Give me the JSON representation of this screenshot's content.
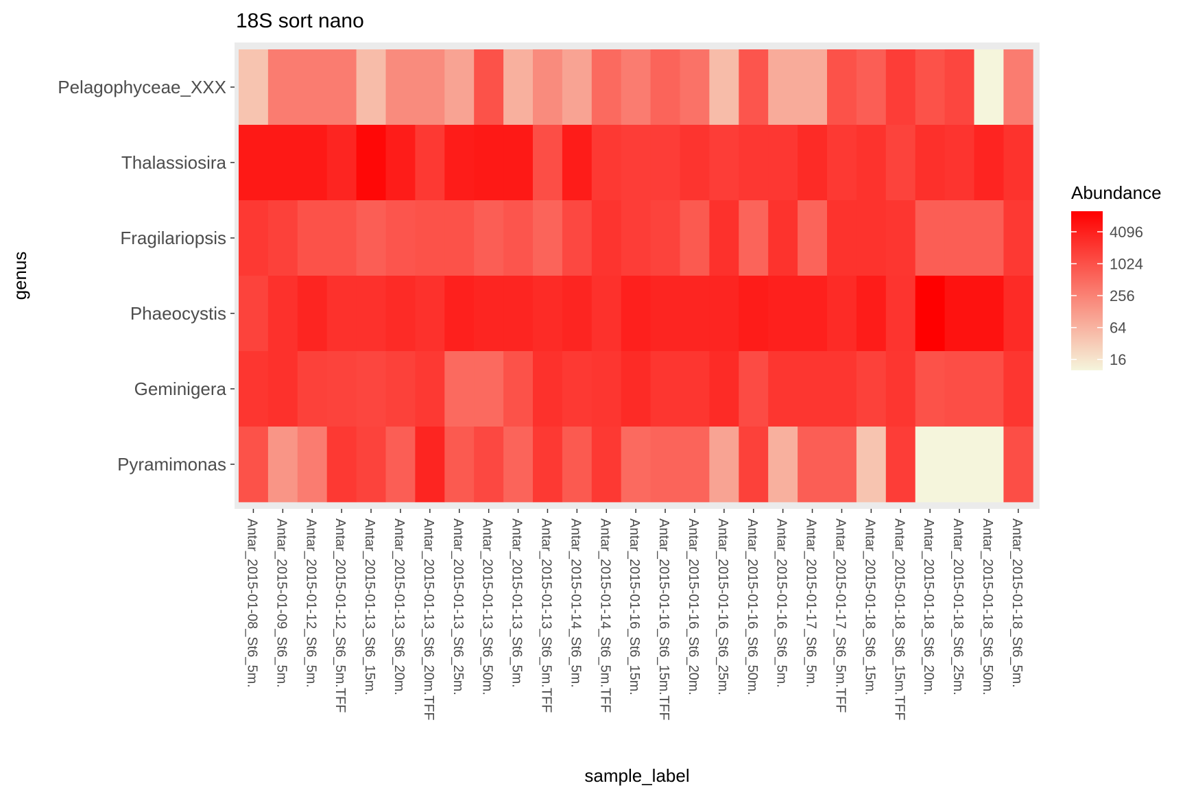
{
  "chart_data": {
    "type": "heatmap",
    "title": "18S sort nano",
    "xlabel": "sample_label",
    "ylabel": "genus",
    "x_categories": [
      "Antar_2015-01-08_St6_5m.",
      "Antar_2015-01-09_St6_5m.",
      "Antar_2015-01-12_St6_5m.",
      "Antar_2015-01-12_St6_5m.TFF",
      "Antar_2015-01-13_St6_15m.",
      "Antar_2015-01-13_St6_20m.",
      "Antar_2015-01-13_St6_20m.TFF",
      "Antar_2015-01-13_St6_25m.",
      "Antar_2015-01-13_St6_50m.",
      "Antar_2015-01-13_St6_5m.",
      "Antar_2015-01-13_St6_5m.TFF",
      "Antar_2015-01-14_St6_5m.",
      "Antar_2015-01-14_St6_5m.TFF",
      "Antar_2015-01-16_St6_15m.",
      "Antar_2015-01-16_St6_15m.TFF",
      "Antar_2015-01-16_St6_20m.",
      "Antar_2015-01-16_St6_25m.",
      "Antar_2015-01-16_St6_50m.",
      "Antar_2015-01-16_St6_5m.",
      "Antar_2015-01-17_St6_5m.",
      "Antar_2015-01-17_St6_5m.TFF",
      "Antar_2015-01-18_St6_15m.",
      "Antar_2015-01-18_St6_15m.TFF",
      "Antar_2015-01-18_St6_20m.",
      "Antar_2015-01-18_St6_25m.",
      "Antar_2015-01-18_St6_50m.",
      "Antar_2015-01-18_St6_5m."
    ],
    "y_categories": [
      "Pelagophyceae_XXX",
      "Thalassiosira",
      "Fragilariopsis",
      "Phaeocystis",
      "Geminigera",
      "Pyramimonas"
    ],
    "values": [
      [
        40,
        300,
        300,
        300,
        50,
        200,
        200,
        100,
        1000,
        70,
        200,
        100,
        500,
        300,
        600,
        400,
        50,
        900,
        80,
        80,
        1000,
        700,
        1800,
        1000,
        1400,
        10,
        300
      ],
      [
        5000,
        5000,
        5000,
        3500,
        8000,
        4500,
        2000,
        4500,
        5000,
        5000,
        1100,
        4500,
        2000,
        1800,
        1800,
        2300,
        1800,
        2100,
        2100,
        3000,
        2000,
        2400,
        1500,
        2600,
        2300,
        3600,
        2400
      ],
      [
        2000,
        1600,
        1000,
        1000,
        700,
        900,
        1000,
        1000,
        700,
        900,
        600,
        1300,
        2300,
        1800,
        1500,
        800,
        2500,
        600,
        2400,
        600,
        2400,
        2400,
        2200,
        700,
        700,
        700,
        2000
      ],
      [
        1500,
        2500,
        3500,
        2500,
        2500,
        3000,
        2500,
        4000,
        3500,
        3500,
        3000,
        3500,
        2500,
        4000,
        3500,
        3500,
        3500,
        4500,
        4000,
        4000,
        3000,
        4500,
        2300,
        10000,
        6000,
        6000,
        3000
      ],
      [
        2200,
        2500,
        1600,
        1500,
        1400,
        1600,
        2000,
        500,
        500,
        1000,
        2500,
        2000,
        2200,
        3000,
        2200,
        2200,
        3000,
        1200,
        2200,
        2200,
        2200,
        1600,
        2200,
        1000,
        1100,
        1100,
        2200
      ],
      [
        1000,
        150,
        300,
        2000,
        1500,
        700,
        3500,
        800,
        1300,
        600,
        2000,
        800,
        2000,
        500,
        600,
        600,
        100,
        1600,
        70,
        700,
        700,
        40,
        1800,
        10,
        10,
        10,
        1100
      ]
    ],
    "scale": "log2",
    "color_low": "#f5f5dc",
    "color_high": "#ff0000",
    "legend": {
      "title": "Abundance",
      "breaks": [
        16,
        64,
        256,
        1024,
        4096
      ],
      "range": [
        10,
        10000
      ],
      "placement": "right"
    },
    "panel_background": "#ebebeb"
  }
}
